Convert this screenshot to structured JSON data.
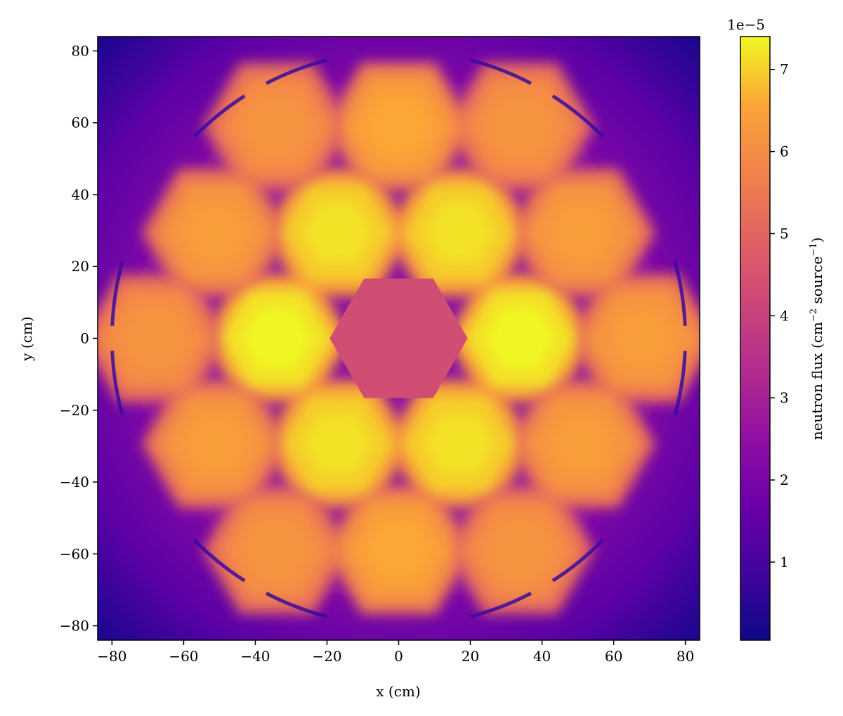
{
  "chart_data": {
    "type": "heatmap",
    "title": "",
    "xlabel": "x (cm)",
    "ylabel": "y (cm)",
    "xlim": [
      -84,
      84
    ],
    "ylim": [
      -84,
      84
    ],
    "x_ticks": [
      -80,
      -60,
      -40,
      -20,
      0,
      20,
      40,
      60,
      80
    ],
    "y_ticks": [
      -80,
      -60,
      -40,
      -20,
      0,
      20,
      40,
      60,
      80
    ],
    "x_tick_labels": [
      "−80",
      "−60",
      "−40",
      "−20",
      "0",
      "20",
      "40",
      "60",
      "80"
    ],
    "y_tick_labels": [
      "−80",
      "−60",
      "−40",
      "−20",
      "0",
      "20",
      "40",
      "60",
      "80"
    ],
    "colorbar": {
      "label": "neutron flux (cm⁻² source⁻¹)",
      "label_main": "neutron flux (cm",
      "label_sup1": "−2",
      "label_mid": " source",
      "label_sup2": "−1",
      "label_end": ")",
      "offset_text": "1e−5",
      "min": 0.05,
      "max": 7.4,
      "ticks": [
        1,
        2,
        3,
        4,
        5,
        6,
        7
      ],
      "tick_labels": [
        "1",
        "2",
        "3",
        "4",
        "5",
        "6",
        "7"
      ],
      "colormap": "plasma"
    },
    "hex_pitch_cm": 34,
    "center_assembly": {
      "x": 0,
      "y": 0,
      "value": 4.3
    },
    "assemblies": [
      {
        "x": 34,
        "y": 0,
        "value": 7.2
      },
      {
        "x": 17,
        "y": 29.4,
        "value": 7.0
      },
      {
        "x": -17,
        "y": 29.4,
        "value": 7.0
      },
      {
        "x": -34,
        "y": 0,
        "value": 7.2
      },
      {
        "x": -17,
        "y": -29.4,
        "value": 7.0
      },
      {
        "x": 17,
        "y": -29.4,
        "value": 7.0
      },
      {
        "x": 68,
        "y": 0,
        "value": 6.2
      },
      {
        "x": 51,
        "y": 29.4,
        "value": 6.2
      },
      {
        "x": 34,
        "y": 58.9,
        "value": 6.0
      },
      {
        "x": 0,
        "y": 58.9,
        "value": 6.4
      },
      {
        "x": -34,
        "y": 58.9,
        "value": 6.0
      },
      {
        "x": -51,
        "y": 29.4,
        "value": 6.2
      },
      {
        "x": -68,
        "y": 0,
        "value": 6.0
      },
      {
        "x": -51,
        "y": -29.4,
        "value": 6.2
      },
      {
        "x": -34,
        "y": -58.9,
        "value": 6.0
      },
      {
        "x": 0,
        "y": -58.9,
        "value": 6.4
      },
      {
        "x": 34,
        "y": -58.9,
        "value": 6.0
      },
      {
        "x": 51,
        "y": -29.4,
        "value": 6.2
      }
    ],
    "reflector_value_near": 2.3,
    "corner_value": 0.3,
    "control_arcs": [
      {
        "angle_deg": 60,
        "radius_cm": 80
      },
      {
        "angle_deg": 120,
        "radius_cm": 80
      },
      {
        "angle_deg": 180,
        "radius_cm": 80
      },
      {
        "angle_deg": 240,
        "radius_cm": 80
      },
      {
        "angle_deg": 300,
        "radius_cm": 80
      },
      {
        "angle_deg": 0,
        "radius_cm": 80
      }
    ]
  }
}
